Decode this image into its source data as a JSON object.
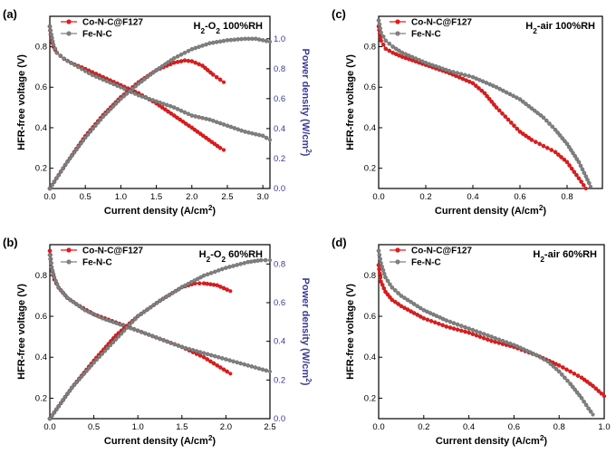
{
  "chart_data": [
    {
      "type": "line",
      "panel_label": "(a)",
      "annotation": "H₂-O₂ 100%RH",
      "xlabel": "Current density (A/cm²)",
      "ylabel": "HFR-free voltage (V)",
      "y2label": "Power density (W/cm²)",
      "xlim": [
        0,
        3.1
      ],
      "ylim": [
        0.1,
        0.95
      ],
      "y2lim": [
        0,
        1.15
      ],
      "xticks": [
        "0.0",
        "0.5",
        "1.0",
        "1.5",
        "2.0",
        "2.5",
        "3.0"
      ],
      "yticks": [
        "0.2",
        "0.4",
        "0.6",
        "0.8"
      ],
      "y2ticks": [
        "0.0",
        "0.2",
        "0.4",
        "0.6",
        "0.8",
        "1.0"
      ],
      "legend_position": "top-left",
      "series": [
        {
          "name": "Co-N-C@F127",
          "kind": "voltage",
          "color": "#e31a1c",
          "x": [
            0,
            0.02,
            0.05,
            0.1,
            0.2,
            0.3,
            0.5,
            0.75,
            1.0,
            1.25,
            1.5,
            1.75,
            2.0,
            2.2,
            2.4,
            2.45
          ],
          "y": [
            0.9,
            0.84,
            0.8,
            0.77,
            0.74,
            0.72,
            0.69,
            0.65,
            0.61,
            0.57,
            0.52,
            0.46,
            0.4,
            0.35,
            0.3,
            0.29
          ]
        },
        {
          "name": "Fe-N-C",
          "kind": "voltage",
          "color": "#808080",
          "x": [
            0,
            0.02,
            0.05,
            0.1,
            0.2,
            0.4,
            0.6,
            0.8,
            1.0,
            1.25,
            1.5,
            1.75,
            2.0,
            2.25,
            2.5,
            2.75,
            3.0,
            3.1
          ],
          "y": [
            0.9,
            0.86,
            0.81,
            0.77,
            0.74,
            0.7,
            0.66,
            0.63,
            0.6,
            0.56,
            0.53,
            0.5,
            0.46,
            0.44,
            0.41,
            0.38,
            0.36,
            0.34
          ]
        },
        {
          "name": "Co-N-C@F127",
          "kind": "power",
          "color": "#e31a1c",
          "x": [
            0,
            0.25,
            0.5,
            0.75,
            1.0,
            1.25,
            1.5,
            1.75,
            1.9,
            2.0,
            2.15,
            2.3,
            2.45
          ],
          "y": [
            0,
            0.18,
            0.35,
            0.49,
            0.61,
            0.71,
            0.79,
            0.84,
            0.855,
            0.85,
            0.82,
            0.76,
            0.71
          ]
        },
        {
          "name": "Fe-N-C",
          "kind": "power",
          "color": "#808080",
          "x": [
            0,
            0.25,
            0.5,
            0.75,
            1.0,
            1.25,
            1.5,
            1.75,
            2.0,
            2.25,
            2.5,
            2.75,
            2.9,
            3.0,
            3.1
          ],
          "y": [
            0,
            0.18,
            0.34,
            0.48,
            0.6,
            0.7,
            0.79,
            0.87,
            0.93,
            0.97,
            0.99,
            1.0,
            1.0,
            0.99,
            0.98
          ]
        }
      ]
    },
    {
      "type": "line",
      "panel_label": "(b)",
      "annotation": "H₂-O₂ 60%RH",
      "xlabel": "Current density (A/cm²)",
      "ylabel": "HFR-free voltage (V)",
      "y2label": "Power density (W/cm²)",
      "xlim": [
        0,
        2.5
      ],
      "ylim": [
        0.1,
        0.95
      ],
      "y2lim": [
        0,
        0.9
      ],
      "xticks": [
        "0.0",
        "0.5",
        "1.0",
        "1.5",
        "2.0",
        "2.5"
      ],
      "yticks": [
        "0.2",
        "0.4",
        "0.6",
        "0.8"
      ],
      "y2ticks": [
        "0.0",
        "0.2",
        "0.4",
        "0.6",
        "0.8"
      ],
      "legend_position": "top-left",
      "series": [
        {
          "name": "Co-N-C@F127",
          "kind": "voltage",
          "color": "#e31a1c",
          "x": [
            0,
            0.02,
            0.05,
            0.1,
            0.2,
            0.3,
            0.5,
            0.75,
            1.0,
            1.25,
            1.5,
            1.75,
            1.9,
            2.05
          ],
          "y": [
            0.92,
            0.84,
            0.78,
            0.74,
            0.69,
            0.66,
            0.61,
            0.57,
            0.53,
            0.49,
            0.45,
            0.4,
            0.36,
            0.32
          ]
        },
        {
          "name": "Fe-N-C",
          "kind": "voltage",
          "color": "#808080",
          "x": [
            0,
            0.02,
            0.05,
            0.1,
            0.2,
            0.4,
            0.6,
            0.8,
            1.0,
            1.25,
            1.5,
            1.75,
            2.0,
            2.25,
            2.5
          ],
          "y": [
            0.9,
            0.84,
            0.79,
            0.74,
            0.69,
            0.63,
            0.59,
            0.56,
            0.53,
            0.49,
            0.45,
            0.42,
            0.39,
            0.36,
            0.33
          ]
        },
        {
          "name": "Co-N-C@F127",
          "kind": "power",
          "color": "#e31a1c",
          "x": [
            0,
            0.25,
            0.5,
            0.75,
            1.0,
            1.25,
            1.5,
            1.65,
            1.75,
            1.9,
            2.05
          ],
          "y": [
            0,
            0.16,
            0.3,
            0.43,
            0.53,
            0.61,
            0.68,
            0.7,
            0.7,
            0.69,
            0.66
          ]
        },
        {
          "name": "Fe-N-C",
          "kind": "power",
          "color": "#808080",
          "x": [
            0,
            0.25,
            0.5,
            0.75,
            1.0,
            1.25,
            1.5,
            1.75,
            2.0,
            2.25,
            2.4,
            2.5
          ],
          "y": [
            0,
            0.16,
            0.29,
            0.41,
            0.53,
            0.61,
            0.68,
            0.74,
            0.78,
            0.81,
            0.82,
            0.82
          ]
        }
      ]
    },
    {
      "type": "line",
      "panel_label": "(c)",
      "annotation": "H₂-air 100%RH",
      "xlabel": "Current density (A/cm²)",
      "ylabel": "HFR-free voltage (V)",
      "xlim": [
        0,
        0.95
      ],
      "ylim": [
        0.1,
        0.95
      ],
      "xticks": [
        "0.0",
        "0.2",
        "0.4",
        "0.6",
        "0.8"
      ],
      "yticks": [
        "0.2",
        "0.4",
        "0.6",
        "0.8"
      ],
      "legend_position": "top-left",
      "series": [
        {
          "name": "Co-N-C@F127",
          "kind": "voltage",
          "color": "#e31a1c",
          "x": [
            0,
            0.01,
            0.03,
            0.06,
            0.1,
            0.2,
            0.3,
            0.4,
            0.45,
            0.5,
            0.55,
            0.6,
            0.65,
            0.7,
            0.75,
            0.8,
            0.85,
            0.88
          ],
          "y": [
            0.9,
            0.83,
            0.79,
            0.77,
            0.75,
            0.71,
            0.67,
            0.62,
            0.57,
            0.5,
            0.44,
            0.38,
            0.34,
            0.31,
            0.28,
            0.23,
            0.15,
            0.1
          ]
        },
        {
          "name": "Fe-N-C",
          "kind": "voltage",
          "color": "#808080",
          "x": [
            0,
            0.01,
            0.03,
            0.06,
            0.1,
            0.2,
            0.3,
            0.4,
            0.5,
            0.6,
            0.7,
            0.75,
            0.8,
            0.85,
            0.88,
            0.9
          ],
          "y": [
            0.93,
            0.87,
            0.83,
            0.8,
            0.77,
            0.72,
            0.68,
            0.65,
            0.6,
            0.54,
            0.45,
            0.39,
            0.32,
            0.23,
            0.16,
            0.11
          ]
        }
      ]
    },
    {
      "type": "line",
      "panel_label": "(d)",
      "annotation": "H₂-air 60%RH",
      "xlabel": "Current density (A/cm²)",
      "ylabel": "HFR-free voltage (V)",
      "xlim": [
        0,
        1.0
      ],
      "ylim": [
        0.1,
        0.95
      ],
      "xticks": [
        "0.0",
        "0.2",
        "0.4",
        "0.6",
        "0.8",
        "1.0"
      ],
      "yticks": [
        "0.2",
        "0.4",
        "0.6",
        "0.8"
      ],
      "legend_position": "top-left",
      "series": [
        {
          "name": "Co-N-C@F127",
          "kind": "voltage",
          "color": "#e31a1c",
          "x": [
            0,
            0.01,
            0.03,
            0.06,
            0.1,
            0.2,
            0.3,
            0.4,
            0.5,
            0.6,
            0.7,
            0.8,
            0.85,
            0.9,
            0.95,
            1.0
          ],
          "y": [
            0.85,
            0.77,
            0.72,
            0.68,
            0.65,
            0.59,
            0.55,
            0.52,
            0.48,
            0.45,
            0.41,
            0.36,
            0.33,
            0.3,
            0.26,
            0.21
          ]
        },
        {
          "name": "Fe-N-C",
          "kind": "voltage",
          "color": "#808080",
          "x": [
            0,
            0.01,
            0.03,
            0.06,
            0.1,
            0.2,
            0.3,
            0.4,
            0.5,
            0.6,
            0.7,
            0.75,
            0.8,
            0.85,
            0.9,
            0.93,
            0.95
          ],
          "y": [
            0.92,
            0.86,
            0.79,
            0.74,
            0.7,
            0.63,
            0.58,
            0.54,
            0.5,
            0.46,
            0.41,
            0.38,
            0.33,
            0.27,
            0.2,
            0.15,
            0.12
          ]
        }
      ]
    }
  ]
}
